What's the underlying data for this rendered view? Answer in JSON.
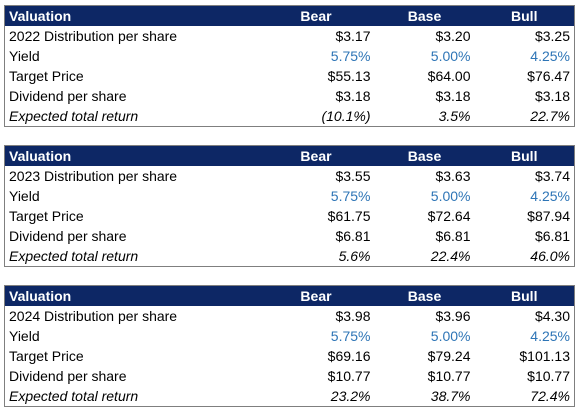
{
  "colors": {
    "header_bg": "#0d2765",
    "header_text": "#ffffff",
    "yield_blue": "#2e75b6",
    "text": "#000000",
    "border": "#7f7f7f"
  },
  "tables": [
    {
      "header": {
        "label": "Valuation",
        "bear": "Bear",
        "base": "Base",
        "bull": "Bull"
      },
      "rows": [
        {
          "label": "2022 Distribution per share",
          "bear": "$3.17",
          "base": "$3.20",
          "bull": "$3.25"
        },
        {
          "label": "Yield",
          "bear": "5.75%",
          "base": "5.00%",
          "bull": "4.25%"
        },
        {
          "label": "Target Price",
          "bear": "$55.13",
          "base": "$64.00",
          "bull": "$76.47"
        },
        {
          "label": "Dividend per share",
          "bear": "$3.18",
          "base": "$3.18",
          "bull": "$3.18"
        },
        {
          "label": "Expected total return",
          "bear": "(10.1%)",
          "base": "3.5%",
          "bull": "22.7%"
        }
      ]
    },
    {
      "header": {
        "label": "Valuation",
        "bear": "Bear",
        "base": "Base",
        "bull": "Bull"
      },
      "rows": [
        {
          "label": "2023 Distribution per share",
          "bear": "$3.55",
          "base": "$3.63",
          "bull": "$3.74"
        },
        {
          "label": "Yield",
          "bear": "5.75%",
          "base": "5.00%",
          "bull": "4.25%"
        },
        {
          "label": "Target Price",
          "bear": "$61.75",
          "base": "$72.64",
          "bull": "$87.94"
        },
        {
          "label": "Dividend per share",
          "bear": "$6.81",
          "base": "$6.81",
          "bull": "$6.81"
        },
        {
          "label": "Expected total return",
          "bear": "5.6%",
          "base": "22.4%",
          "bull": "46.0%"
        }
      ]
    },
    {
      "header": {
        "label": "Valuation",
        "bear": "Bear",
        "base": "Base",
        "bull": "Bull"
      },
      "rows": [
        {
          "label": "2024 Distribution per share",
          "bear": "$3.98",
          "base": "$3.96",
          "bull": "$4.30"
        },
        {
          "label": "Yield",
          "bear": "5.75%",
          "base": "5.00%",
          "bull": "4.25%"
        },
        {
          "label": "Target Price",
          "bear": "$69.16",
          "base": "$79.24",
          "bull": "$101.13"
        },
        {
          "label": "Dividend per share",
          "bear": "$10.77",
          "base": "$10.77",
          "bull": "$10.77"
        },
        {
          "label": "Expected total return",
          "bear": "23.2%",
          "base": "38.7%",
          "bull": "72.4%"
        }
      ]
    }
  ]
}
